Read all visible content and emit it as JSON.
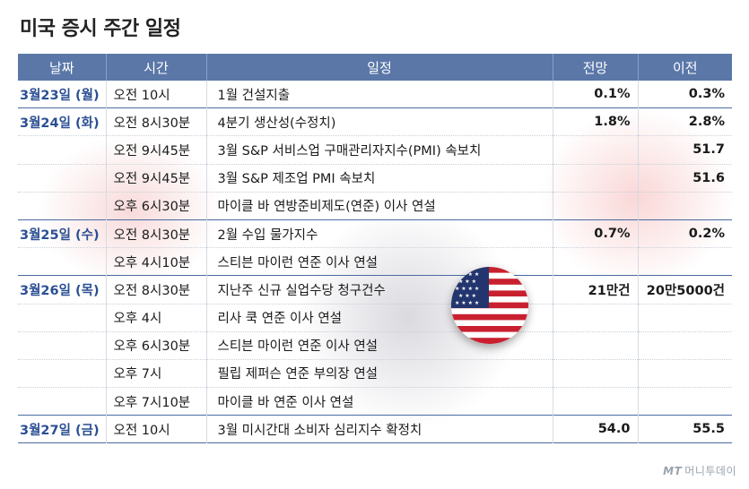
{
  "title": "미국 증시 주간 일정",
  "headers": {
    "date": "날짜",
    "time": "시간",
    "event": "일정",
    "forecast": "전망",
    "previous": "이전"
  },
  "rows": [
    {
      "date": "3월23일 (월)",
      "time": "오전 10시",
      "event": "1월 건설지출",
      "forecast": "0.1%",
      "previous": "0.3%"
    },
    {
      "date": "3월24일 (화)",
      "time": "오전 8시30분",
      "event": "4분기 생산성(수정치)",
      "forecast": "1.8%",
      "previous": "2.8%"
    },
    {
      "date": "",
      "time": "오전 9시45분",
      "event": "3월 S&P 서비스업 구매관리자지수(PMI) 속보치",
      "forecast": "",
      "previous": "51.7"
    },
    {
      "date": "",
      "time": "오전 9시45분",
      "event": "3월 S&P 제조업 PMI 속보치",
      "forecast": "",
      "previous": "51.6"
    },
    {
      "date": "",
      "time": "오후 6시30분",
      "event": "마이클 바 연방준비제도(연준) 이사 연설",
      "forecast": "",
      "previous": ""
    },
    {
      "date": "3월25일 (수)",
      "time": "오전 8시30분",
      "event": "2월 수입 물가지수",
      "forecast": "0.7%",
      "previous": "0.2%"
    },
    {
      "date": "",
      "time": "오후 4시10분",
      "event": "스티븐 마이런 연준 이사 연설",
      "forecast": "",
      "previous": ""
    },
    {
      "date": "3월26일 (목)",
      "time": "오전 8시30분",
      "event": "지난주 신규 실업수당 청구건수",
      "forecast": "21만건",
      "previous": "20만5000건"
    },
    {
      "date": "",
      "time": "오후 4시",
      "event": "리사 쿡 연준 이사 연설",
      "forecast": "",
      "previous": ""
    },
    {
      "date": "",
      "time": "오후 6시30분",
      "event": "스티븐 마이런 연준 이사 연설",
      "forecast": "",
      "previous": ""
    },
    {
      "date": "",
      "time": "오후 7시",
      "event": "필립 제퍼슨 연준 부의장 연설",
      "forecast": "",
      "previous": ""
    },
    {
      "date": "",
      "time": "오후 7시10분",
      "event": "마이클 바 연준 이사 연설",
      "forecast": "",
      "previous": ""
    },
    {
      "date": "3월27일 (금)",
      "time": "오전 10시",
      "event": "3월 미시간대 소비자 심리지수 확정치",
      "forecast": "54.0",
      "previous": "55.5"
    }
  ],
  "logo": {
    "mark": "MT",
    "name": "머니투데이"
  },
  "colors": {
    "header_bg": "#5a77a8",
    "date_text": "#2a4f93"
  },
  "icons": {
    "flag": "us-flag-icon"
  }
}
